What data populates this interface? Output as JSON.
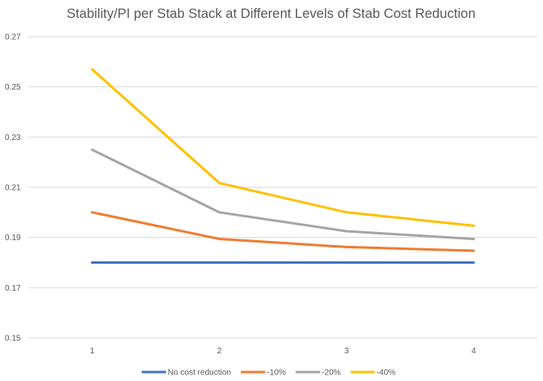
{
  "chart_data": {
    "type": "line",
    "title": "Stability/PI per Stab Stack at Different Levels of Stab Cost Reduction",
    "xlabel": "",
    "ylabel": "",
    "categories": [
      "1",
      "2",
      "3",
      "4"
    ],
    "ylim": [
      0.15,
      0.27
    ],
    "yticks": [
      "0.15",
      "0.17",
      "0.19",
      "0.21",
      "0.23",
      "0.25",
      "0.27"
    ],
    "grid": true,
    "legend_position": "bottom",
    "series": [
      {
        "name": "No cost reduction",
        "color": "#4472C4",
        "values": [
          0.18,
          0.18,
          0.18,
          0.18
        ]
      },
      {
        "name": "-10%",
        "color": "#ED7D31",
        "values": [
          0.2,
          0.1894,
          0.1862,
          0.1847
        ]
      },
      {
        "name": "-20%",
        "color": "#A5A5A5",
        "values": [
          0.225,
          0.2,
          0.1925,
          0.1894
        ]
      },
      {
        "name": "-40%",
        "color": "#FFC000",
        "values": [
          0.257,
          0.2117,
          0.2,
          0.1947
        ]
      }
    ]
  }
}
